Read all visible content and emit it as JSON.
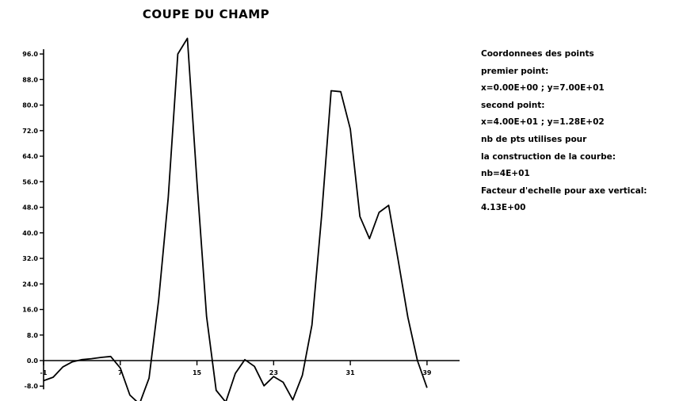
{
  "title": "COUPE DU CHAMP",
  "info_lines": [
    "Coordonnees des points",
    "premier point:",
    "x=0.00E+00 ; y=7.00E+01",
    "second point:",
    "x=4.00E+01 ; y=1.28E+02",
    "nb de pts utilises pour",
    "la construction de la courbe:",
    "nb=4E+01",
    "Facteur d'echelle pour axe vertical:",
    "4.13E+00"
  ],
  "chart_data": {
    "type": "line",
    "title": "COUPE DU CHAMP",
    "xlabel": "",
    "ylabel": "",
    "xlim": [
      -1,
      40
    ],
    "ylim": [
      -8,
      100
    ],
    "y_ticks": [
      96,
      88,
      80,
      72,
      64,
      56,
      48,
      40,
      32,
      24,
      16,
      8,
      0,
      -8
    ],
    "y_tick_labels": [
      "96.0",
      "88.0",
      "80.0",
      "72.0",
      "64.0",
      "56.0",
      "48.0",
      "40.0",
      "32.0",
      "24.0",
      "16.0",
      "8.0",
      "0.0",
      "-8.0"
    ],
    "x_ticks": [
      -1,
      7,
      15,
      23,
      31,
      39
    ],
    "x_tick_labels": [
      "-1",
      "7",
      "15",
      "23",
      "31",
      "39"
    ],
    "grid": false,
    "series": [
      {
        "x": [
          -1,
          0,
          1,
          2,
          3,
          4,
          5,
          6,
          7,
          8,
          9,
          10,
          11,
          12,
          13,
          14,
          15,
          16,
          17,
          18,
          19,
          20,
          21,
          22,
          23,
          24,
          25,
          26,
          27,
          28,
          29,
          30,
          31,
          32,
          33,
          34,
          35,
          36,
          37,
          38,
          39
        ],
        "y": [
          -6.3,
          -5.2,
          -2.0,
          -0.4,
          0.3,
          0.6,
          1.0,
          1.3,
          -2.3,
          -10.8,
          -13.6,
          -5.5,
          18.9,
          51.0,
          96.0,
          100.9,
          55.8,
          13.8,
          -9.3,
          -13.0,
          -4.0,
          0.3,
          -1.8,
          -7.9,
          -5.0,
          -6.8,
          -12.3,
          -4.6,
          11.2,
          45.1,
          84.5,
          84.2,
          72.5,
          45.1,
          38.2,
          46.4,
          48.6,
          31.3,
          13.6,
          0.0,
          -8.5
        ]
      }
    ]
  }
}
